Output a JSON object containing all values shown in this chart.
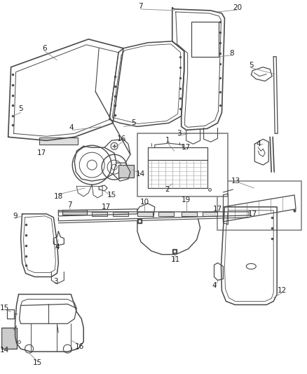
{
  "bg_color": "#f5f5f5",
  "line_color": "#4a4a4a",
  "text_color": "#222222",
  "fig_width": 4.38,
  "fig_height": 5.33,
  "dpi": 100
}
